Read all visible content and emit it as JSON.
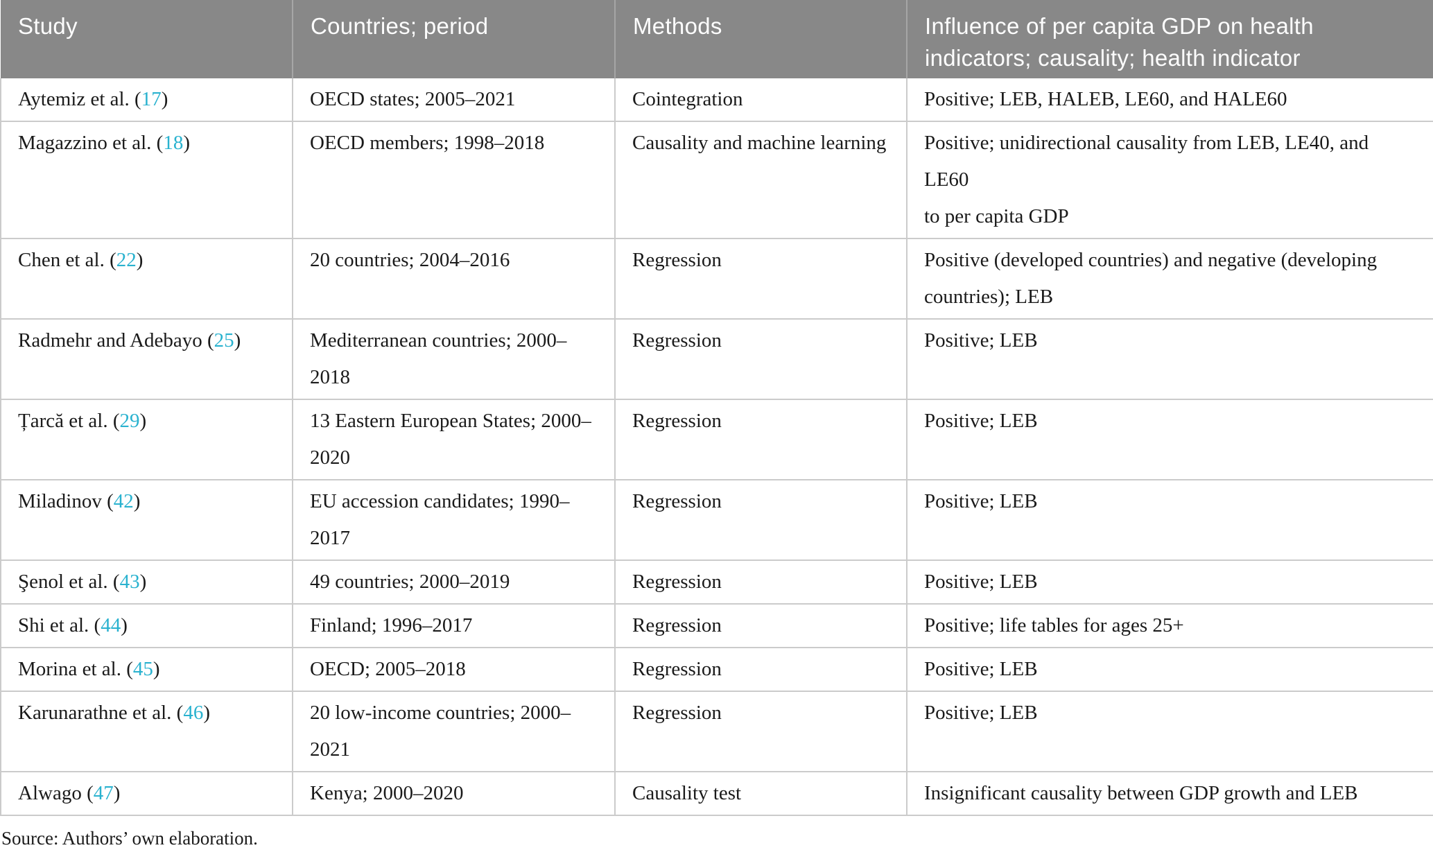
{
  "colors": {
    "header_bg": "#888888",
    "header_text": "#fdfdfd",
    "header_divider": "#a6a6a6",
    "body_border": "#cbcbcb",
    "body_text": "#1a1a1a",
    "reference_link": "#29b2cf"
  },
  "table": {
    "columns": [
      "Study",
      "Countries; period",
      "Methods",
      "Influence of per capita GDP on health\nindicators; causality; health indicator"
    ],
    "rows": [
      {
        "study_prefix": "Aytemiz et al. (",
        "ref": "17",
        "study_suffix": ")",
        "countries": "OECD states; 2005–2021",
        "methods": "Cointegration",
        "influence": "Positive; LEB, HALEB, LE60, and HALE60"
      },
      {
        "study_prefix": "Magazzino et al. (",
        "ref": "18",
        "study_suffix": ")",
        "countries": "OECD members; 1998–2018",
        "methods": "Causality and machine learning",
        "influence": "Positive; unidirectional causality from LEB, LE40, and LE60\nto per capita GDP"
      },
      {
        "study_prefix": "Chen et al. (",
        "ref": "22",
        "study_suffix": ")",
        "countries": "20 countries; 2004–2016",
        "methods": "Regression",
        "influence": "Positive (developed countries) and negative (developing\ncountries); LEB"
      },
      {
        "study_prefix": "Radmehr and Adebayo (",
        "ref": "25",
        "study_suffix": ")",
        "countries": "Mediterranean countries; 2000–\n2018",
        "methods": "Regression",
        "influence": "Positive; LEB"
      },
      {
        "study_prefix": "Țarcă et al. (",
        "ref": "29",
        "study_suffix": ")",
        "countries": "13 Eastern European States; 2000–\n2020",
        "methods": "Regression",
        "influence": "Positive; LEB"
      },
      {
        "study_prefix": "Miladinov (",
        "ref": "42",
        "study_suffix": ")",
        "countries": "EU accession candidates; 1990–2017",
        "methods": "Regression",
        "influence": "Positive; LEB"
      },
      {
        "study_prefix": "Şenol et al. (",
        "ref": "43",
        "study_suffix": ")",
        "countries": "49 countries; 2000–2019",
        "methods": "Regression",
        "influence": "Positive; LEB"
      },
      {
        "study_prefix": "Shi et al. (",
        "ref": "44",
        "study_suffix": ")",
        "countries": "Finland; 1996–2017",
        "methods": "Regression",
        "influence": "Positive; life tables for ages 25+"
      },
      {
        "study_prefix": "Morina et al. (",
        "ref": "45",
        "study_suffix": ")",
        "countries": "OECD; 2005–2018",
        "methods": "Regression",
        "influence": "Positive; LEB"
      },
      {
        "study_prefix": "Karunarathne et al. (",
        "ref": "46",
        "study_suffix": ")",
        "countries": "20 low-income countries; 2000–\n2021",
        "methods": "Regression",
        "influence": "Positive; LEB"
      },
      {
        "study_prefix": "Alwago (",
        "ref": "47",
        "study_suffix": ")",
        "countries": "Kenya; 2000–2020",
        "methods": "Causality test",
        "influence": "Insignificant causality between GDP growth and LEB"
      }
    ]
  },
  "footer": {
    "source_note": "Source: Authors’ own elaboration."
  }
}
